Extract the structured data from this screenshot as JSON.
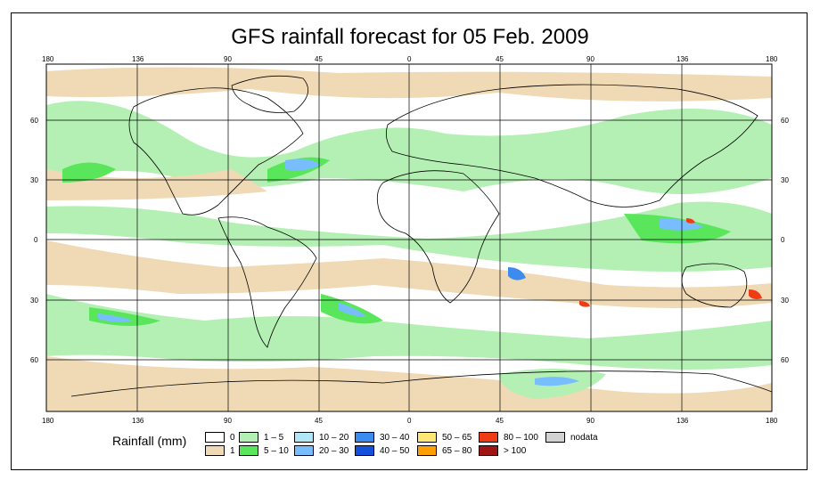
{
  "title": "GFS rainfall forecast for 05 Feb. 2009",
  "legend_title": "Rainfall (mm)",
  "legend": [
    {
      "label": "0",
      "color": "#ffffff"
    },
    {
      "label": "1",
      "color": "#f0d9b5"
    },
    {
      "label": "1 – 5",
      "color": "#b4f0b4"
    },
    {
      "label": "5 – 10",
      "color": "#5ae65a"
    },
    {
      "label": "10 – 20",
      "color": "#b0e6f5"
    },
    {
      "label": "20 – 30",
      "color": "#78beff"
    },
    {
      "label": "30 – 40",
      "color": "#3c8cf0"
    },
    {
      "label": "40 – 50",
      "color": "#1450dc"
    },
    {
      "label": "50 – 65",
      "color": "#ffe678"
    },
    {
      "label": "65 – 80",
      "color": "#ffa000"
    },
    {
      "label": "80 – 100",
      "color": "#f03c14"
    },
    {
      "label": "> 100",
      "color": "#a01414"
    },
    {
      "label": "nodata",
      "color": "#d2d2d2"
    }
  ],
  "axes": {
    "lon_ticks_top": [
      "180",
      "136",
      "90",
      "45",
      "0",
      "45",
      "90",
      "136",
      "180"
    ],
    "lon_ticks_bottom": [
      "180",
      "136",
      "90",
      "45",
      "0",
      "45",
      "90",
      "136",
      "180"
    ],
    "lat_ticks_left": [
      "60",
      "30",
      "0",
      "30",
      "60"
    ],
    "lat_ticks_right": [
      "60",
      "30",
      "0",
      "30",
      "60"
    ]
  },
  "colors": {
    "grid": "#000000",
    "coast": "#000000"
  }
}
